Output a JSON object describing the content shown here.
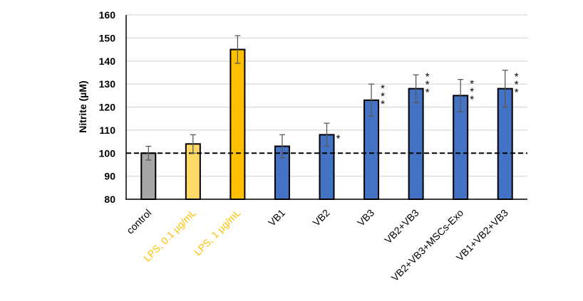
{
  "chart_data": {
    "type": "bar",
    "title": "",
    "xlabel": "",
    "ylabel": "Nitrite (µM)",
    "ylim": [
      80,
      160
    ],
    "yticks": [
      80,
      90,
      100,
      110,
      120,
      130,
      140,
      150,
      160
    ],
    "grid": true,
    "legend": null,
    "reference_line": {
      "y": 100,
      "style": "dashed",
      "color": "#000000"
    },
    "categories": [
      "control",
      "LPS, 0.1 µg/mL",
      "LPS, 1 µg/mL",
      "VB1",
      "VB2",
      "VB3",
      "VB2+VB3",
      "VB2+VB3+MSCs-Exo",
      "VB1+VB2+VB3"
    ],
    "values": [
      100,
      104,
      145,
      103,
      108,
      123,
      128,
      125,
      128
    ],
    "error": [
      3,
      4,
      6,
      5,
      5,
      7,
      6,
      7,
      8
    ],
    "significance": [
      "",
      "",
      "",
      "",
      "*",
      "***",
      "***",
      "***",
      "***"
    ],
    "bar_colors": [
      "#A6A6A6",
      "#FFD966",
      "#FFC000",
      "#4472C4",
      "#4472C4",
      "#4472C4",
      "#4472C4",
      "#4472C4",
      "#4472C4"
    ],
    "label_colors": [
      "#000000",
      "#FFC000",
      "#FFC000",
      "#000000",
      "#000000",
      "#000000",
      "#000000",
      "#000000",
      "#000000"
    ]
  }
}
